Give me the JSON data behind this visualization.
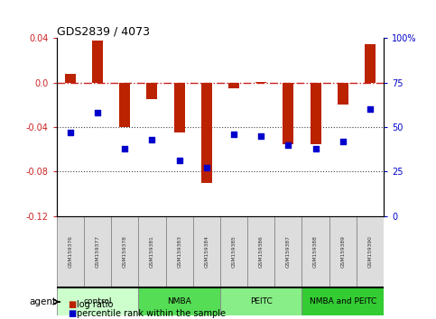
{
  "title": "GDS2839 / 4073",
  "samples": [
    "GSM159376",
    "GSM159377",
    "GSM159378",
    "GSM159381",
    "GSM159383",
    "GSM159384",
    "GSM159385",
    "GSM159386",
    "GSM159387",
    "GSM159388",
    "GSM159389",
    "GSM159390"
  ],
  "log_ratio": [
    0.008,
    0.038,
    -0.04,
    -0.015,
    -0.045,
    -0.09,
    -0.005,
    0.001,
    -0.055,
    -0.055,
    -0.02,
    0.035
  ],
  "percentile_rank": [
    47,
    58,
    38,
    43,
    31,
    27,
    46,
    45,
    40,
    38,
    42,
    60
  ],
  "groups": [
    {
      "label": "control",
      "start": 0,
      "end": 3,
      "color": "#ccffcc"
    },
    {
      "label": "NMBA",
      "start": 3,
      "end": 6,
      "color": "#55dd55"
    },
    {
      "label": "PEITC",
      "start": 6,
      "end": 9,
      "color": "#88ee88"
    },
    {
      "label": "NMBA and PEITC",
      "start": 9,
      "end": 12,
      "color": "#33cc33"
    }
  ],
  "ylim": [
    -0.12,
    0.04
  ],
  "yticks_left": [
    -0.12,
    -0.08,
    -0.04,
    0.0,
    0.04
  ],
  "yticks_right": [
    0,
    25,
    50,
    75,
    100
  ],
  "bar_color": "#bb2200",
  "dot_color": "#0000cc",
  "hline_color": "#cc2222",
  "dotted_line_color": "#444444",
  "agent_label": "agent",
  "legend_log_ratio": "log ratio",
  "legend_percentile": "percentile rank within the sample",
  "bar_width": 0.4
}
